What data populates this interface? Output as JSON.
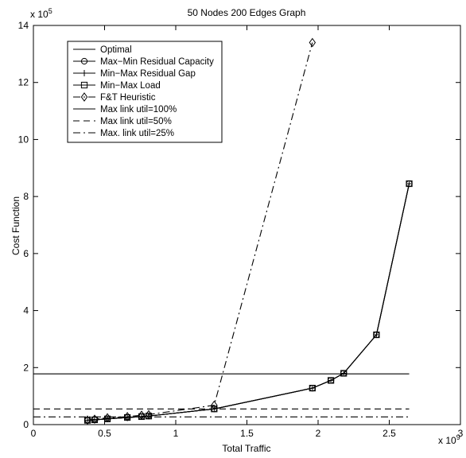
{
  "chart_data": {
    "type": "line",
    "title": "50 Nodes 200 Edges Graph",
    "xlabel": "Total Traffic",
    "ylabel": "Cost Function",
    "x_exponent": "x 10",
    "x_exponent_power": "9",
    "y_exponent": "x 10",
    "y_exponent_power": "5",
    "xlim": [
      0,
      3
    ],
    "ylim": [
      0,
      14
    ],
    "x_ticks": [
      {
        "value": 0,
        "label": "0"
      },
      {
        "value": 0.5,
        "label": "0.5"
      },
      {
        "value": 1,
        "label": "1"
      },
      {
        "value": 1.5,
        "label": "1.5"
      },
      {
        "value": 2,
        "label": "2"
      },
      {
        "value": 2.5,
        "label": "2.5"
      },
      {
        "value": 3,
        "label": "3"
      }
    ],
    "y_ticks": [
      {
        "value": 0,
        "label": "0"
      },
      {
        "value": 2,
        "label": "2"
      },
      {
        "value": 4,
        "label": "4"
      },
      {
        "value": 6,
        "label": "6"
      },
      {
        "value": 8,
        "label": "8"
      },
      {
        "value": 10,
        "label": "10"
      },
      {
        "value": 12,
        "label": "12"
      },
      {
        "value": 14,
        "label": "14"
      }
    ],
    "grid": false,
    "legend_position": "top-left",
    "series": [
      {
        "name": "Optimal",
        "marker": "none",
        "line": "solid",
        "color": "#000000",
        "x": [
          0.38,
          0.43,
          0.52,
          0.66,
          0.76,
          0.81,
          1.27,
          1.96,
          2.09,
          2.18,
          2.41,
          2.64
        ],
        "y": [
          0.15,
          0.17,
          0.2,
          0.25,
          0.28,
          0.3,
          0.55,
          1.28,
          1.55,
          1.8,
          3.15,
          8.45
        ]
      },
      {
        "name": "Max−Min Residual Capacity",
        "marker": "circle",
        "line": "solid",
        "color": "#000000",
        "x": [
          0.38,
          0.43,
          0.52,
          0.66,
          0.76,
          0.81,
          1.27,
          1.96,
          2.09,
          2.18,
          2.41,
          2.64
        ],
        "y": [
          0.15,
          0.17,
          0.2,
          0.25,
          0.28,
          0.3,
          0.55,
          1.28,
          1.55,
          1.8,
          3.15,
          8.45
        ]
      },
      {
        "name": "Min−Max Residual Gap",
        "marker": "plus",
        "line": "solid",
        "color": "#000000",
        "x": [
          0.38,
          0.43,
          0.52,
          0.66,
          0.76,
          0.81,
          1.27,
          1.96,
          2.09,
          2.18,
          2.41,
          2.64
        ],
        "y": [
          0.15,
          0.17,
          0.2,
          0.25,
          0.28,
          0.3,
          0.55,
          1.28,
          1.55,
          1.8,
          3.15,
          8.45
        ]
      },
      {
        "name": "Min−Max Load",
        "marker": "square",
        "line": "solid",
        "color": "#000000",
        "x": [
          0.38,
          0.43,
          0.52,
          0.66,
          0.76,
          0.81,
          1.27,
          1.96,
          2.09,
          2.18,
          2.41,
          2.64
        ],
        "y": [
          0.15,
          0.17,
          0.2,
          0.25,
          0.28,
          0.3,
          0.55,
          1.28,
          1.55,
          1.8,
          3.15,
          8.45
        ]
      },
      {
        "name": "F&T Heuristic",
        "marker": "diamond",
        "line": "dashdot",
        "color": "#000000",
        "x": [
          0.38,
          0.43,
          0.52,
          0.66,
          0.76,
          0.81,
          1.27,
          1.96
        ],
        "y": [
          0.16,
          0.19,
          0.24,
          0.28,
          0.33,
          0.35,
          0.68,
          13.4
        ]
      },
      {
        "name": "Max link util=100%",
        "marker": "none",
        "line": "solid",
        "color": "#000000",
        "x": [
          0,
          2.64
        ],
        "y": [
          1.78,
          1.78
        ]
      },
      {
        "name": "Max link util=50%",
        "marker": "none",
        "line": "dashed",
        "color": "#000000",
        "x": [
          0,
          2.64
        ],
        "y": [
          0.55,
          0.55
        ]
      },
      {
        "name": "Max. link util=25%",
        "marker": "none",
        "line": "dashdot",
        "color": "#000000",
        "x": [
          0,
          2.64
        ],
        "y": [
          0.27,
          0.27
        ]
      }
    ]
  }
}
